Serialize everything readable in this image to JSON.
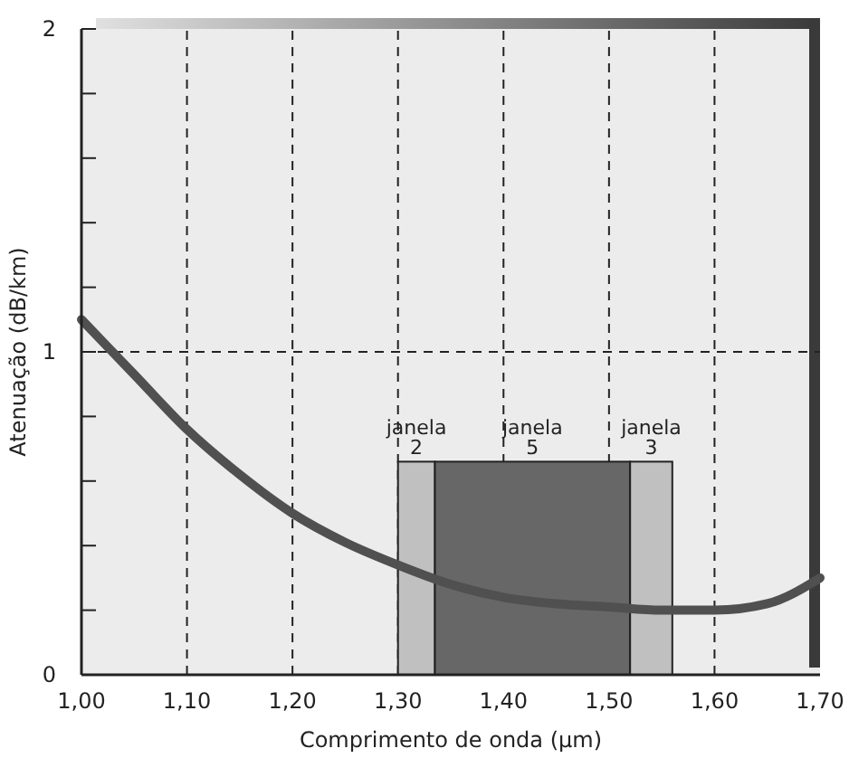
{
  "chart_data": {
    "type": "line",
    "xlabel": "Comprimento de onda (µm)",
    "ylabel": "Atenuação (dB/km)",
    "x": [
      1.0,
      1.05,
      1.1,
      1.15,
      1.2,
      1.25,
      1.3,
      1.35,
      1.4,
      1.45,
      1.5,
      1.55,
      1.6,
      1.65,
      1.7
    ],
    "series": [
      {
        "color": "#505050",
        "values": [
          1.1,
          0.93,
          0.76,
          0.62,
          0.5,
          0.41,
          0.34,
          0.28,
          0.24,
          0.22,
          0.21,
          0.2,
          0.2,
          0.22,
          0.3
        ]
      }
    ],
    "xlim": [
      1.0,
      1.7
    ],
    "xticks": [
      {
        "value": 1.0,
        "label": "1,00"
      },
      {
        "value": 1.1,
        "label": "1,10"
      },
      {
        "value": 1.2,
        "label": "1,20"
      },
      {
        "value": 1.3,
        "label": "1,30"
      },
      {
        "value": 1.4,
        "label": "1,40"
      },
      {
        "value": 1.5,
        "label": "1,50"
      },
      {
        "value": 1.6,
        "label": "1,60"
      },
      {
        "value": 1.7,
        "label": "1,70"
      }
    ],
    "ylim": [
      0,
      2
    ],
    "yticks": [
      0,
      {
        "value": 0.2,
        "label": null
      },
      {
        "value": 0.4,
        "label": null
      },
      {
        "value": 0.6,
        "label": null
      },
      {
        "value": 0.8,
        "label": null
      },
      1,
      {
        "value": 1.2,
        "label": null
      },
      {
        "value": 1.4,
        "label": null
      },
      {
        "value": 1.6,
        "label": null
      },
      {
        "value": 1.8,
        "label": null
      },
      2
    ],
    "grid": true,
    "line_style": "solid",
    "marker": "none",
    "bands": [
      {
        "axis": "x",
        "from": 1.3,
        "to": 1.335,
        "label": "janela 2",
        "color": "#c0c0c0"
      },
      {
        "axis": "x",
        "from": 1.335,
        "to": 1.52,
        "label": "janela 5",
        "color": "#676767"
      },
      {
        "axis": "x",
        "from": 1.52,
        "to": 1.56,
        "label": "janela 3",
        "color": "#c0c0c0"
      }
    ]
  }
}
